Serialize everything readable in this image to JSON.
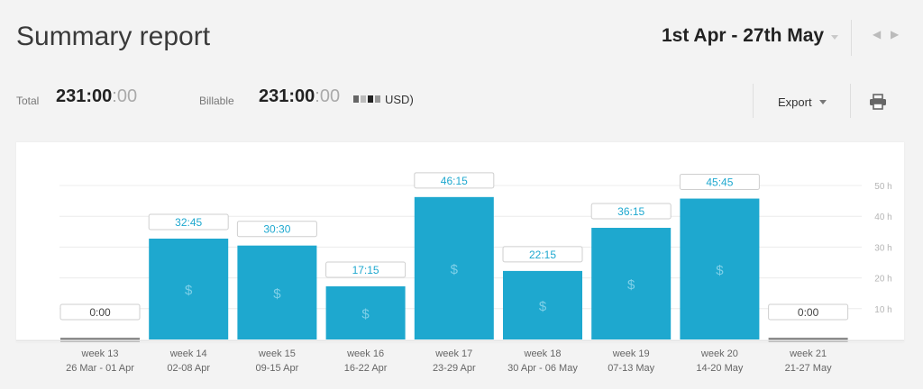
{
  "header": {
    "title": "Summary report",
    "date_range": "1st Apr - 27th May",
    "prev_icon": "chevron-left-icon",
    "next_icon": "chevron-right-icon"
  },
  "stats": {
    "total_label": "Total",
    "total_main": "231:00",
    "total_sec": ":00",
    "billable_label": "Billable",
    "billable_main": "231:00",
    "billable_sec": ":00",
    "currency_suffix": "USD)"
  },
  "toolbar": {
    "export_label": "Export",
    "print_icon": "printer-icon"
  },
  "colors": {
    "bar": "#1ea8cf",
    "bar_zero": "#8c8c8c",
    "label_text": "#1ea8cf",
    "axis_text": "#b5b5b5"
  },
  "chart_data": {
    "type": "bar",
    "categories": [
      "week 13",
      "week 14",
      "week 15",
      "week 16",
      "week 17",
      "week 18",
      "week 19",
      "week 20",
      "week 21"
    ],
    "subcategories": [
      "26 Mar - 01 Apr",
      "02-08 Apr",
      "09-15 Apr",
      "16-22 Apr",
      "23-29 Apr",
      "30 Apr - 06 May",
      "07-13 May",
      "14-20 May",
      "21-27 May"
    ],
    "values": [
      0,
      32.75,
      30.5,
      17.25,
      46.25,
      22.25,
      36.25,
      45.75,
      0
    ],
    "data_labels": [
      "0:00",
      "32:45",
      "30:30",
      "17:15",
      "46:15",
      "22:15",
      "36:15",
      "45:45",
      "0:00"
    ],
    "billable_symbol": "$",
    "yticks": [
      "10 h",
      "20 h",
      "30 h",
      "40 h",
      "50 h"
    ],
    "ylim": [
      0,
      50
    ],
    "grid": true
  }
}
